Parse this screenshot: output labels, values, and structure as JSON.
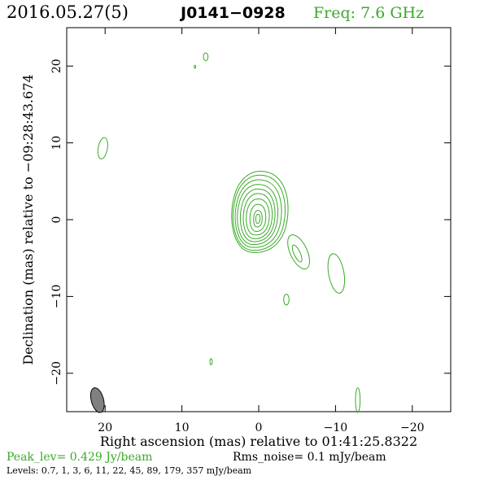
{
  "header": {
    "date": "2016.05.27(5)",
    "source": "J0141−0928",
    "freq": "Freq: 7.6 GHz"
  },
  "footer": {
    "peak": "Peak_lev=  0.429 Jy/beam",
    "rms": "Rms_noise=  0.1 mJy/beam",
    "levels": "Levels: 0.7,   1,   3,   6,  11,  22,  45,  89, 179, 357 mJy/beam"
  },
  "colors": {
    "contour": "#3aaa28",
    "beam": "#808080",
    "frame": "#000000"
  },
  "chart_data": {
    "type": "contour",
    "xlabel": "Right ascension (mas) relative to 01:41:25.8322",
    "ylabel": "Declination (mas) relative to −09:28:43.674",
    "xlim": [
      25,
      -25
    ],
    "ylim": [
      -25,
      25
    ],
    "xticks": [
      20,
      10,
      0,
      -10,
      -20
    ],
    "yticks": [
      20,
      10,
      0,
      -10,
      -20
    ],
    "xtick_labels": [
      "20",
      "10",
      "0",
      "−10",
      "−20"
    ],
    "ytick_labels": [
      "20",
      "10",
      "0",
      "−10",
      "−20"
    ],
    "core": {
      "x": 0.0,
      "y": 0.0
    },
    "core_levels": [
      {
        "rx": 3.9,
        "ry": 5.4,
        "cx": -0.2,
        "cy": 0.9
      },
      {
        "rx": 3.6,
        "ry": 5.0,
        "cx": -0.1,
        "cy": 0.8
      },
      {
        "rx": 3.2,
        "ry": 4.5,
        "cx": 0.0,
        "cy": 0.7
      },
      {
        "rx": 2.8,
        "ry": 4.0,
        "cx": 0.1,
        "cy": 0.6
      },
      {
        "rx": 2.4,
        "ry": 3.5,
        "cx": 0.1,
        "cy": 0.5
      },
      {
        "rx": 2.0,
        "ry": 3.0,
        "cx": 0.1,
        "cy": 0.4
      },
      {
        "rx": 1.6,
        "ry": 2.4,
        "cx": 0.1,
        "cy": 0.3
      },
      {
        "rx": 1.1,
        "ry": 1.8,
        "cx": 0.1,
        "cy": 0.2
      },
      {
        "rx": 0.6,
        "ry": 1.1,
        "cx": 0.1,
        "cy": 0.1
      },
      {
        "rx": 0.3,
        "ry": 0.6,
        "cx": 0.1,
        "cy": 0.1
      }
    ],
    "components": [
      {
        "x": -5.2,
        "y": -4.2,
        "rx": 1.1,
        "ry": 2.4,
        "angle": -25
      },
      {
        "x": -5.0,
        "y": -4.4,
        "rx": 0.4,
        "ry": 1.2,
        "angle": -25
      },
      {
        "x": -10.1,
        "y": -7.0,
        "rx": 1.0,
        "ry": 2.6,
        "angle": -10
      },
      {
        "x": -3.6,
        "y": -10.4,
        "rx": 0.35,
        "ry": 0.7,
        "angle": 0
      },
      {
        "x": 20.3,
        "y": 9.3,
        "rx": 0.6,
        "ry": 1.4,
        "angle": 10
      },
      {
        "x": 6.9,
        "y": 21.2,
        "rx": 0.3,
        "ry": 0.5,
        "angle": 0
      },
      {
        "x": 8.3,
        "y": 19.9,
        "rx": 0.1,
        "ry": 0.2,
        "angle": 0
      },
      {
        "x": 6.2,
        "y": -18.5,
        "rx": 0.15,
        "ry": 0.4,
        "angle": 0
      },
      {
        "x": -12.9,
        "y": -23.5,
        "rx": 0.3,
        "ry": 1.6,
        "angle": 0
      }
    ],
    "beam": {
      "x": 21.0,
      "y": -23.5,
      "major": 3.3,
      "minor": 1.6,
      "angle": -15
    }
  }
}
